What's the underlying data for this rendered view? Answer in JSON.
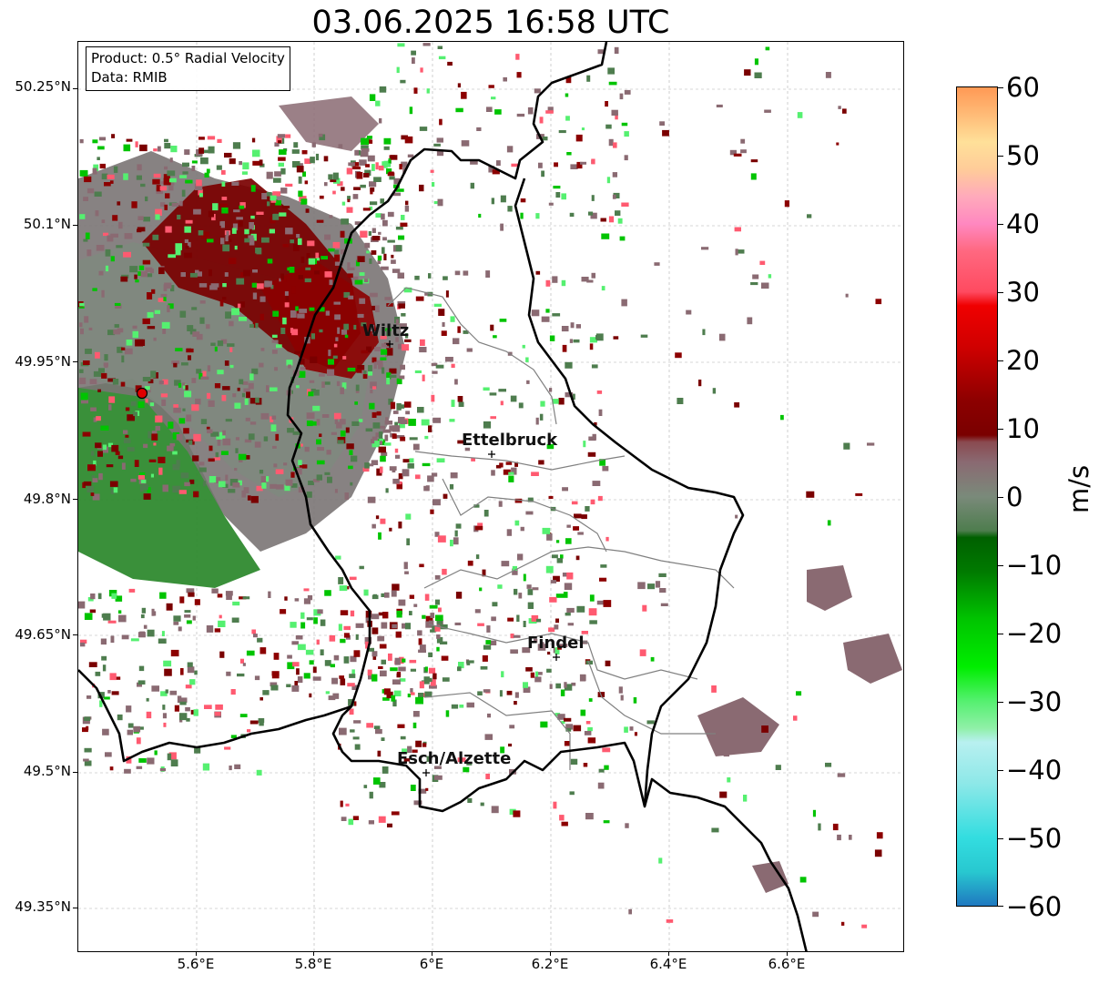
{
  "title": "03.06.2025 16:58 UTC",
  "info_box": {
    "product": "Product: 0.5° Radial Velocity",
    "source": "Data: RMIB"
  },
  "map": {
    "lon_range": [
      5.4,
      6.8
    ],
    "lat_range": [
      49.3,
      50.3
    ],
    "grid": true,
    "lat_ticks": [
      "50.25°N",
      "50.1°N",
      "49.95°N",
      "49.8°N",
      "49.65°N",
      "49.5°N",
      "49.35°N"
    ],
    "lon_ticks": [
      "5.6°E",
      "5.8°E",
      "6°E",
      "6.2°E",
      "6.4°E",
      "6.6°E"
    ],
    "radar_site": {
      "lon": 5.505,
      "lat": 49.914,
      "color": "#e00000"
    },
    "cities": [
      {
        "name": "Wiltz",
        "lon": 5.93,
        "lat": 49.966
      },
      {
        "name": "Ettelbruck",
        "lon": 6.1,
        "lat": 49.848
      },
      {
        "name": "Findel",
        "lon": 6.21,
        "lat": 49.627
      },
      {
        "name": "Esch/Alzette",
        "lon": 5.99,
        "lat": 49.5
      }
    ],
    "border_color": "#000000",
    "district_color": "#808080"
  },
  "colorbar": {
    "label": "m/s",
    "min": -60,
    "max": 60,
    "tick_labels": [
      "60",
      "50",
      "40",
      "30",
      "20",
      "10",
      "0",
      "−10",
      "−20",
      "−30",
      "−40",
      "−50",
      "−60"
    ],
    "stops": [
      {
        "v": -60,
        "c": "#1f78c0"
      },
      {
        "v": -55,
        "c": "#28c8d0"
      },
      {
        "v": -50,
        "c": "#33dde0"
      },
      {
        "v": -42,
        "c": "#8ee8e8"
      },
      {
        "v": -36,
        "c": "#b8f0f0"
      },
      {
        "v": -34,
        "c": "#90f0a8"
      },
      {
        "v": -30,
        "c": "#55f070"
      },
      {
        "v": -25,
        "c": "#00ee00"
      },
      {
        "v": -18,
        "c": "#00c400"
      },
      {
        "v": -11,
        "c": "#007a00"
      },
      {
        "v": -6,
        "c": "#006000"
      },
      {
        "v": -5,
        "c": "#4e7d4e"
      },
      {
        "v": 0,
        "c": "#7a8a7a"
      },
      {
        "v": 5,
        "c": "#8a6a72"
      },
      {
        "v": 8,
        "c": "#8a4a50"
      },
      {
        "v": 9,
        "c": "#7a0000"
      },
      {
        "v": 14,
        "c": "#8c0000"
      },
      {
        "v": 22,
        "c": "#d00000"
      },
      {
        "v": 28,
        "c": "#f00000"
      },
      {
        "v": 30,
        "c": "#ff4a60"
      },
      {
        "v": 36,
        "c": "#ff6880"
      },
      {
        "v": 40,
        "c": "#ff88c0"
      },
      {
        "v": 44,
        "c": "#ffaabb"
      },
      {
        "v": 48,
        "c": "#ffcc99"
      },
      {
        "v": 52,
        "c": "#ffe099"
      },
      {
        "v": 56,
        "c": "#ffbb77"
      },
      {
        "v": 60,
        "c": "#ff9955"
      }
    ]
  }
}
